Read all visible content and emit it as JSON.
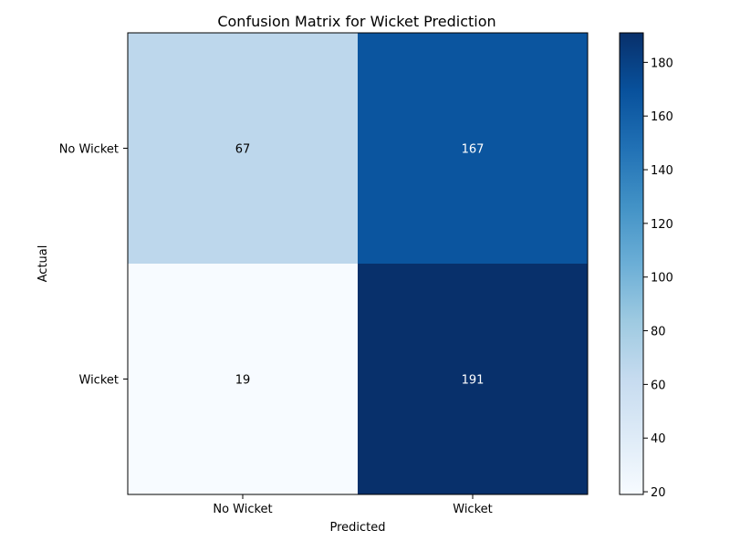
{
  "chart_data": {
    "type": "heatmap",
    "title": "Confusion Matrix for Wicket Prediction",
    "xlabel": "Predicted",
    "ylabel": "Actual",
    "x_categories": [
      "No Wicket",
      "Wicket"
    ],
    "y_categories": [
      "No Wicket",
      "Wicket"
    ],
    "values": [
      [
        67,
        167
      ],
      [
        19,
        191
      ]
    ],
    "colormap": "Blues",
    "colorbar": {
      "min": 19,
      "max": 191,
      "ticks": [
        20,
        40,
        60,
        80,
        100,
        120,
        140,
        160,
        180
      ]
    },
    "cell_text_colors": {
      "dark": "#000000",
      "light": "#ffffff"
    }
  }
}
